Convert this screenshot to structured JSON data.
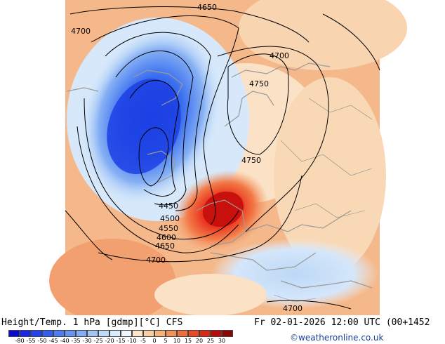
{
  "map": {
    "contour_labels": [
      "4650",
      "4700",
      "4700",
      "4750",
      "4750",
      "4450",
      "4500",
      "4550",
      "4600",
      "4650",
      "4700",
      "4700"
    ]
  },
  "footer": {
    "title": "Height/Temp. 1 hPa [gdmp][°C] CFS",
    "datetime": "Fr 02-01-2026 12:00 UTC (00+1452",
    "credit": "©weatheronline.co.uk"
  },
  "colorbar": {
    "labels": [
      "-80",
      "-55",
      "-50",
      "-45",
      "-40",
      "-35",
      "-30",
      "-25",
      "-20",
      "-15",
      "-10",
      "-5",
      "0",
      "5",
      "10",
      "15",
      "20",
      "25",
      "30"
    ],
    "colors": [
      "#0a0ad2",
      "#1628e6",
      "#2244ee",
      "#3060f0",
      "#4a7ef2",
      "#6496f4",
      "#82aef6",
      "#a0c6f8",
      "#bcdcfa",
      "#d8ecfc",
      "#eef6fe",
      "#fbe6c8",
      "#f9cea0",
      "#f6b27a",
      "#f2925a",
      "#ee6e3c",
      "#e84a26",
      "#dc2814",
      "#b80c0a",
      "#8c0606"
    ]
  }
}
